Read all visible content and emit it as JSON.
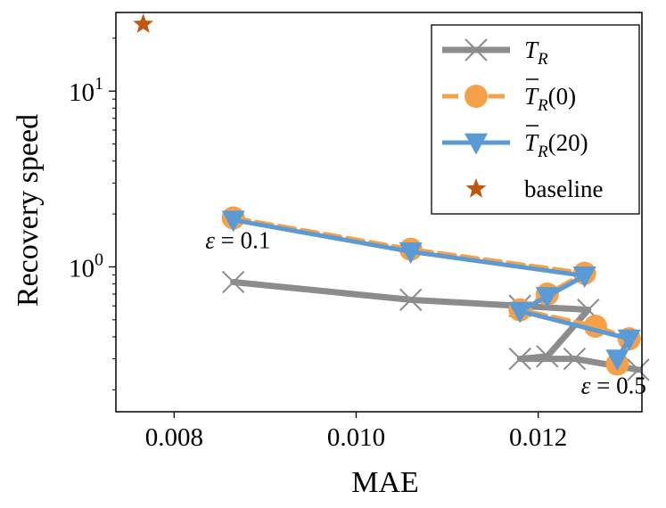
{
  "chart_data": {
    "type": "line",
    "xlabel": "MAE",
    "ylabel": "Recovery speed",
    "xscale": "linear",
    "yscale": "log",
    "xlim": [
      0.00736,
      0.01314
    ],
    "ylim": [
      0.15,
      28
    ],
    "xticks": [
      {
        "value": 0.008,
        "label": "0.008"
      },
      {
        "value": 0.01,
        "label": "0.010"
      },
      {
        "value": 0.012,
        "label": "0.012"
      }
    ],
    "yticks": [
      {
        "value": 1,
        "base": "10",
        "exp": "0"
      },
      {
        "value": 10,
        "base": "10",
        "exp": "1"
      }
    ],
    "legend_position": "top-right",
    "series": [
      {
        "name": "T_R",
        "legend_main": "T",
        "legend_sub": "R",
        "legend_suffix": "",
        "legend_bar": false,
        "color": "#8c8c8c",
        "marker": "x",
        "linestyle": "solid",
        "points": [
          [
            0.00865,
            0.82
          ],
          [
            0.0106,
            0.65
          ],
          [
            0.0118,
            0.6
          ],
          [
            0.01255,
            0.57
          ],
          [
            0.0121,
            0.31
          ],
          [
            0.0118,
            0.3
          ],
          [
            0.0124,
            0.3
          ],
          [
            0.0131,
            0.26
          ]
        ]
      },
      {
        "name": "T̄_R(0)",
        "legend_main": "T",
        "legend_sub": "R",
        "legend_suffix": "(0)",
        "legend_bar": true,
        "color": "#f7a04a",
        "marker": "o",
        "linestyle": "dashed",
        "points": [
          [
            0.00865,
            1.9
          ],
          [
            0.0106,
            1.26
          ],
          [
            0.01251,
            0.92
          ],
          [
            0.0121,
            0.7
          ],
          [
            0.0118,
            0.57
          ],
          [
            0.01263,
            0.46
          ],
          [
            0.013,
            0.39
          ],
          [
            0.01287,
            0.28
          ]
        ]
      },
      {
        "name": "T̄_R(20)",
        "legend_main": "T",
        "legend_sub": "R",
        "legend_suffix": "(20)",
        "legend_bar": true,
        "color": "#5b9bd5",
        "marker": "v",
        "linestyle": "solid",
        "points": [
          [
            0.00865,
            1.85
          ],
          [
            0.0106,
            1.22
          ],
          [
            0.01251,
            0.89
          ],
          [
            0.0121,
            0.68
          ],
          [
            0.0118,
            0.56
          ],
          [
            0.013,
            0.39
          ],
          [
            0.01287,
            0.3
          ]
        ]
      },
      {
        "name": "baseline",
        "legend_main": "baseline",
        "legend_sub": "",
        "legend_suffix": "",
        "legend_bar": false,
        "color": "#c0560f",
        "marker": "*",
        "linestyle": "none",
        "points": [
          [
            0.00766,
            24
          ]
        ]
      }
    ],
    "annotations": [
      {
        "text": "ε = 0.1",
        "x": 0.0087,
        "y": 1.28
      },
      {
        "text": "ε = 0.5",
        "x": 0.01283,
        "y": 0.19
      }
    ]
  }
}
